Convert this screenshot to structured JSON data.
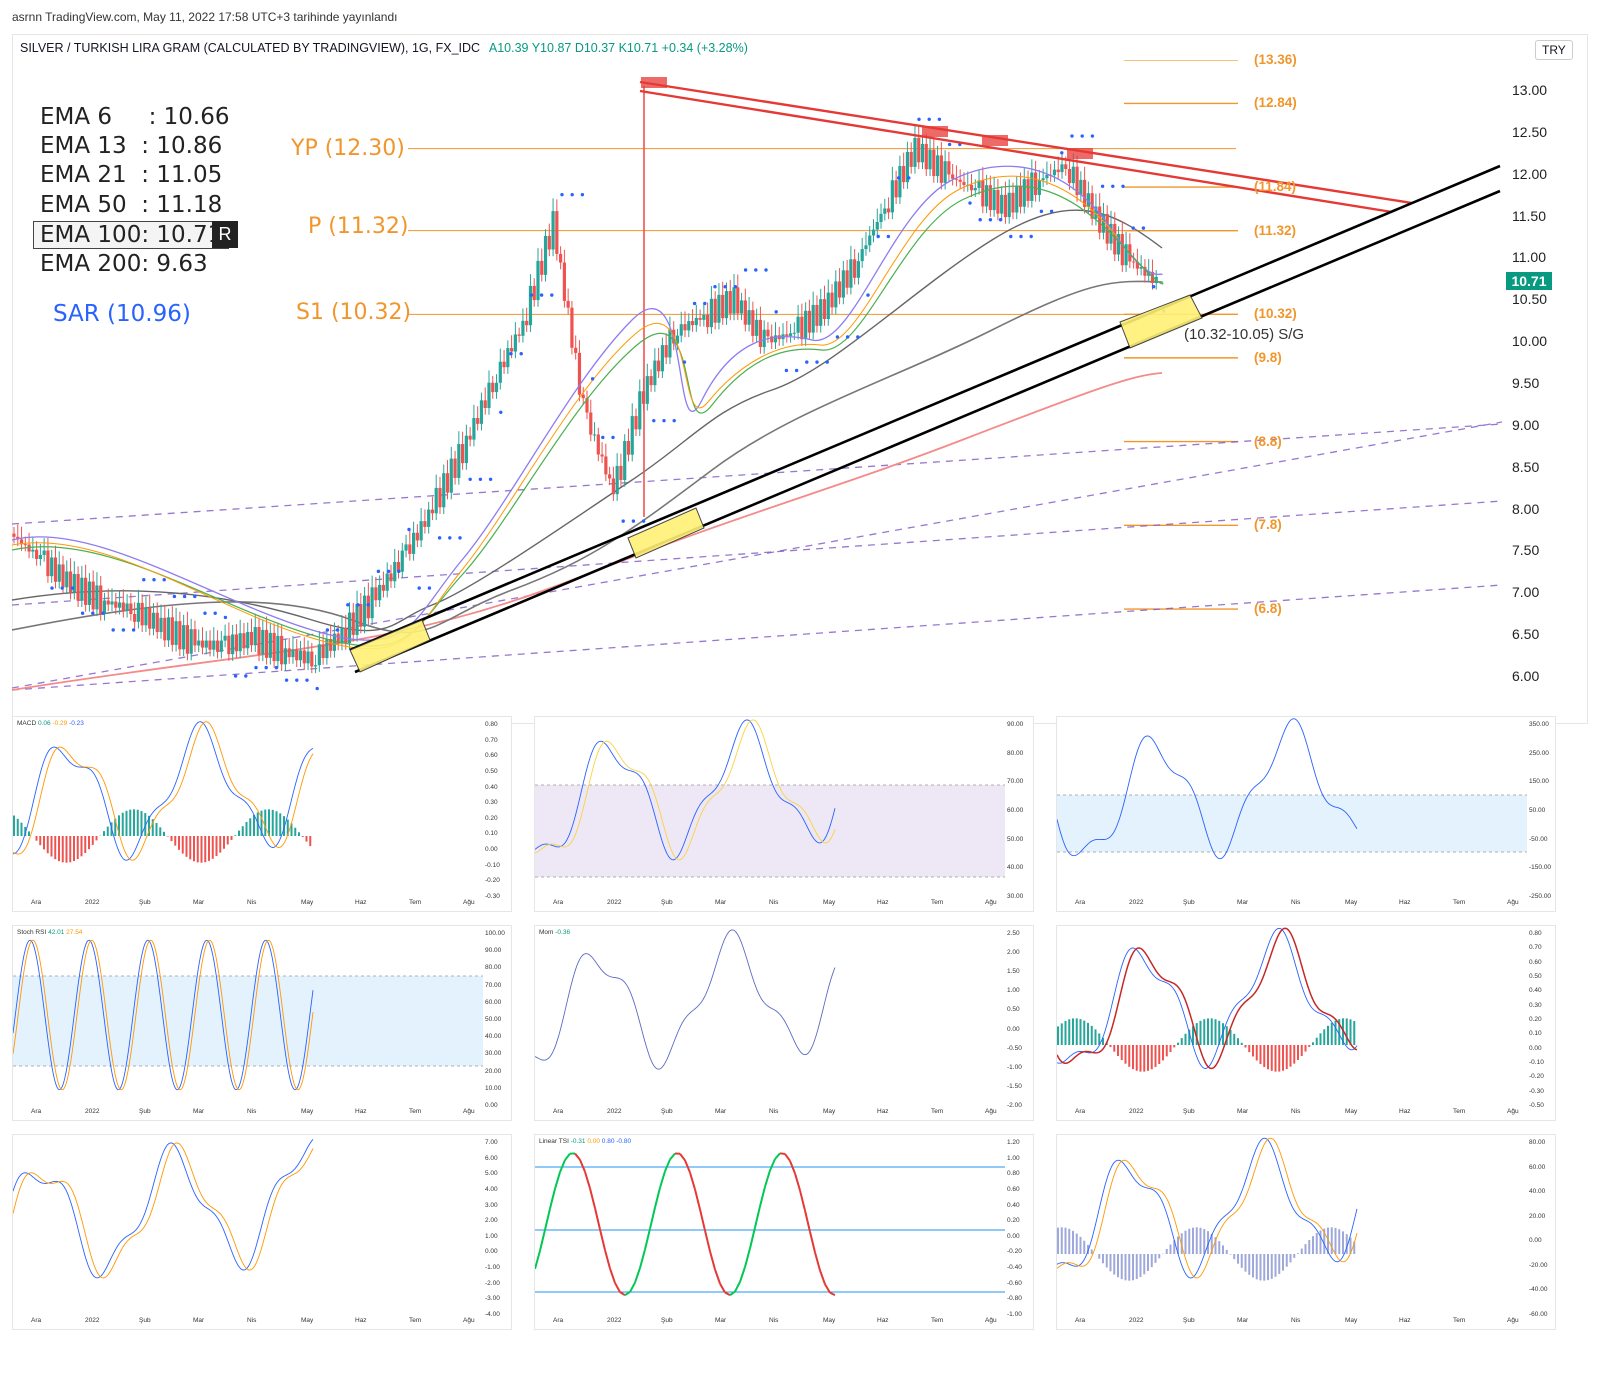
{
  "header": {
    "published": "asrnn TradingView.com, May 11, 2022 17:58 UTC+3 tarihinde yayınlandı"
  },
  "symbol": {
    "name": "SILVER / TURKISH LIRA GRAM (CALCULATED BY TRADINGVIEW), 1G, FX_IDC",
    "ohlc": "A10.39  Y10.87  D10.37  K10.71  +0.34 (+3.28%)",
    "currency": "TRY",
    "last_price": "10.71"
  },
  "legend": {
    "ema6": "EMA 6     : 10.66",
    "ema13": "EMA 13  : 10.86",
    "ema21": "EMA 21  : 11.05",
    "ema50": "EMA 50  : 11.18",
    "ema100": "EMA 100: 10.71",
    "ema100_flag": "R",
    "ema200": "EMA 200: 9.63",
    "sar": "SAR (10.96)"
  },
  "pivots": {
    "yp": "YP (12.30)",
    "p": "P (11.32)",
    "s1": "S1 (10.32)"
  },
  "level_labels": [
    "(13.36)",
    "(12.84)",
    "(11.84)",
    "(11.32)",
    "(10.32)",
    "(9.8)",
    "(8.8)",
    "(7.8)",
    "(6.8)"
  ],
  "support_zone_label": "(10.32-10.05) S/G",
  "price_axis": [
    "13.00",
    "12.50",
    "12.00",
    "11.50",
    "11.00",
    "10.50",
    "10.00",
    "9.50",
    "9.00",
    "8.50",
    "8.00",
    "7.50",
    "7.00",
    "6.50",
    "6.00"
  ],
  "months": [
    "Ara",
    "2022",
    "Şub",
    "Mar",
    "Nis",
    "May",
    "Haz",
    "Tem",
    "Ağu"
  ],
  "colors": {
    "up": "#26a69a",
    "down": "#ef5350",
    "pivot": "#f0962c",
    "trend_red": "#e53935",
    "trend_black": "#000000",
    "zone": "#fff176",
    "sar": "#2962ff",
    "band": "#7e57c2"
  },
  "panels": {
    "macd": {
      "label": "MACD",
      "v1": "0.06",
      "v2": "-0.29",
      "v3": "-0.23",
      "axis": [
        "0.80",
        "0.70",
        "0.60",
        "0.50",
        "0.40",
        "0.30",
        "0.20",
        "0.10",
        "0.00",
        "-0.10",
        "-0.20",
        "-0.30"
      ]
    },
    "rsi": {
      "axis": [
        "90.00",
        "80.00",
        "70.00",
        "60.00",
        "50.00",
        "40.00",
        "30.00"
      ]
    },
    "cci": {
      "axis": [
        "350.00",
        "250.00",
        "150.00",
        "50.00",
        "-50.00",
        "-150.00",
        "-250.00"
      ]
    },
    "stoch": {
      "label": "Stoch RSI",
      "v1": "42.01",
      "v2": "27.54",
      "axis": [
        "100.00",
        "90.00",
        "80.00",
        "70.00",
        "60.00",
        "50.00",
        "40.00",
        "30.00",
        "20.00",
        "10.00",
        "0.00"
      ]
    },
    "mom": {
      "label": "Mom",
      "v1": "-0.36",
      "axis": [
        "2.50",
        "2.00",
        "1.50",
        "1.00",
        "0.50",
        "0.00",
        "-0.50",
        "-1.00",
        "-1.50",
        "-2.00"
      ]
    },
    "macd2": {
      "axis": [
        "0.80",
        "0.70",
        "0.60",
        "0.50",
        "0.40",
        "0.30",
        "0.20",
        "0.10",
        "0.00",
        "-0.10",
        "-0.20",
        "-0.30",
        "-0.50"
      ]
    },
    "osc": {
      "axis": [
        "7.00",
        "6.00",
        "5.00",
        "4.00",
        "3.00",
        "2.00",
        "1.00",
        "0.00",
        "-1.00",
        "-2.00",
        "-3.00",
        "-4.00"
      ]
    },
    "tsi": {
      "label": "Linear TSI",
      "v1": "-0.31",
      "v2": "0.00",
      "v3": "0.80",
      "v4": "-0.80",
      "axis": [
        "1.20",
        "1.00",
        "0.80",
        "0.60",
        "0.40",
        "0.20",
        "0.00",
        "-0.20",
        "-0.40",
        "-0.60",
        "-0.80",
        "-1.00"
      ]
    },
    "wt": {
      "axis": [
        "80.00",
        "60.00",
        "40.00",
        "20.00",
        "0.00",
        "-20.00",
        "-40.00",
        "-60.00"
      ]
    }
  },
  "chart_data": {
    "type": "candlestick",
    "x_axis": [
      "Ara",
      "2022",
      "Şub",
      "Mar",
      "Nis",
      "May",
      "Haz",
      "Tem",
      "Ağu"
    ],
    "ylim": [
      5.8,
      13.3
    ],
    "close_path": [
      7.7,
      7.4,
      7.1,
      6.9,
      6.8,
      6.6,
      6.4,
      6.35,
      6.45,
      6.3,
      6.2,
      6.5,
      6.9,
      7.4,
      8.0,
      8.7,
      9.5,
      10.2,
      11.4,
      9.2,
      8.2,
      9.4,
      10.1,
      10.3,
      10.5,
      10.0,
      10.1,
      10.4,
      10.9,
      11.6,
      12.3,
      12.0,
      11.8,
      11.6,
      11.9,
      12.1,
      11.5,
      11.0,
      10.71
    ],
    "pivot_levels": [
      12.3,
      11.32,
      10.32
    ],
    "target_levels": [
      13.36,
      12.84,
      11.84,
      11.32,
      10.32,
      9.8,
      8.8,
      7.8,
      6.8
    ],
    "last": 10.71
  }
}
